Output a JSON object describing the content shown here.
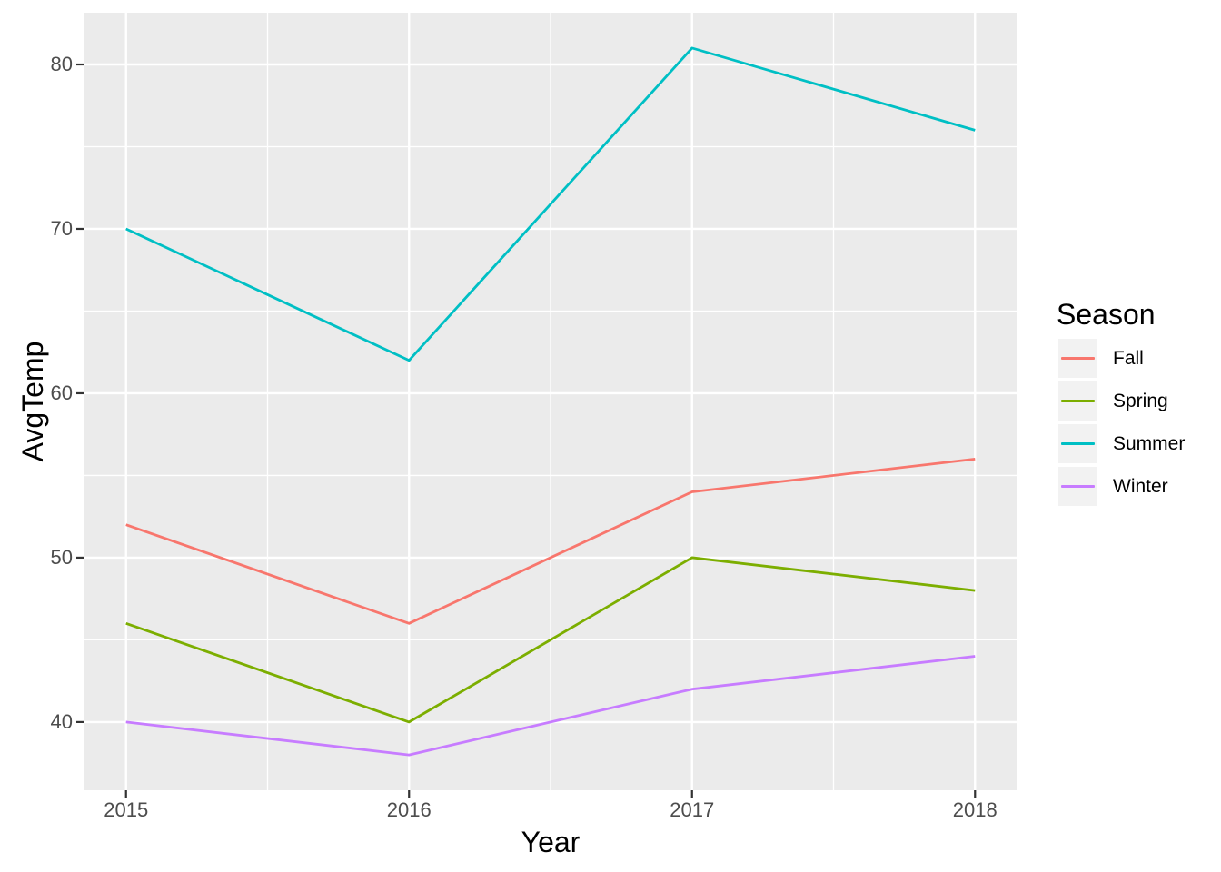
{
  "chart_data": {
    "type": "line",
    "title": "",
    "xlabel": "Year",
    "ylabel": "AvgTemp",
    "x": [
      2015,
      2016,
      2017,
      2018
    ],
    "x_tick_labels": [
      "2015",
      "2016",
      "2017",
      "2018"
    ],
    "y_ticks": [
      40,
      50,
      60,
      70,
      80
    ],
    "y_tick_labels": [
      "40",
      "50",
      "60",
      "70",
      "80"
    ],
    "x_minor_ticks": [
      2015.5,
      2016.5,
      2017.5
    ],
    "y_minor_ticks": [
      45,
      55,
      65,
      75
    ],
    "xlim": [
      2014.85,
      2018.15
    ],
    "ylim": [
      35.85,
      83.15
    ],
    "grid": true,
    "legend_position": "right",
    "legend_title": "Season",
    "series": [
      {
        "name": "Fall",
        "color": "#F8766D",
        "values": [
          52,
          46,
          54,
          56
        ]
      },
      {
        "name": "Spring",
        "color": "#7CAE00",
        "values": [
          46,
          40,
          50,
          48
        ]
      },
      {
        "name": "Summer",
        "color": "#00BFC4",
        "values": [
          70,
          62,
          81,
          76
        ]
      },
      {
        "name": "Winter",
        "color": "#C77CFF",
        "values": [
          40,
          38,
          42,
          44
        ]
      }
    ]
  },
  "theme": {
    "background": "#FFFFFF",
    "panel_background": "#EBEBEB",
    "grid_color": "#FFFFFF",
    "tick_mark_color": "#333333",
    "tick_label_color": "#4D4D4D",
    "axis_title_color": "#000000",
    "legend_key_background": "#F2F2F2",
    "legend_text_color": "#000000"
  }
}
